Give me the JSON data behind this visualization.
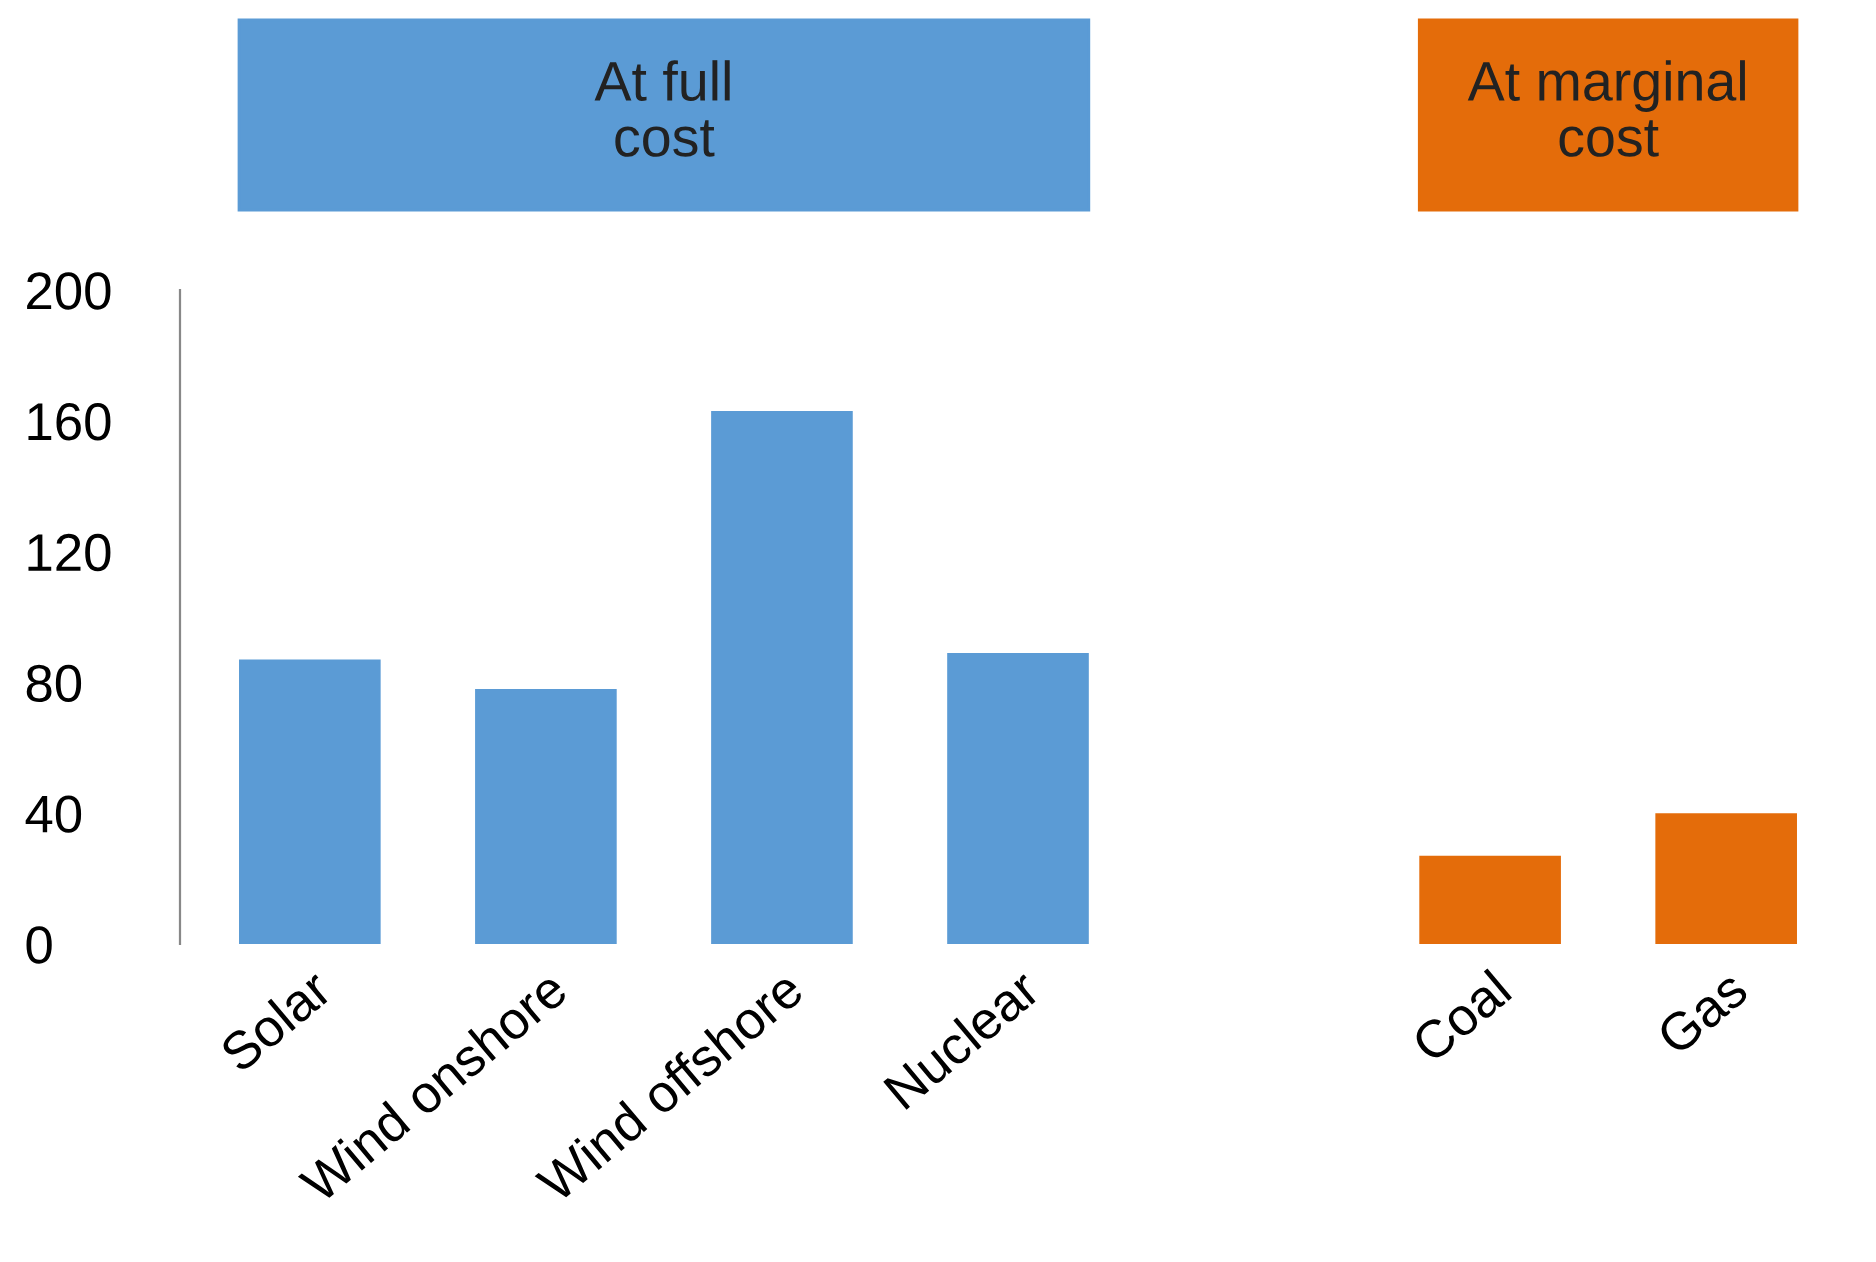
{
  "chart_data": {
    "type": "bar",
    "categories": [
      "Solar",
      "Wind onshore",
      "Wind offshore",
      "Nuclear",
      null,
      "Coal",
      "Gas"
    ],
    "series": [
      {
        "name": "At full cost",
        "color": "#5b9bd5",
        "values": [
          87,
          78,
          163,
          89,
          null,
          null,
          null
        ]
      },
      {
        "name": "At marginal cost",
        "color": "#e46c0a",
        "values": [
          null,
          null,
          null,
          null,
          null,
          27,
          40
        ]
      }
    ],
    "ylim": [
      0,
      200
    ],
    "yticks": [
      0,
      40,
      80,
      120,
      160,
      200
    ],
    "grid": false,
    "legend": false
  }
}
